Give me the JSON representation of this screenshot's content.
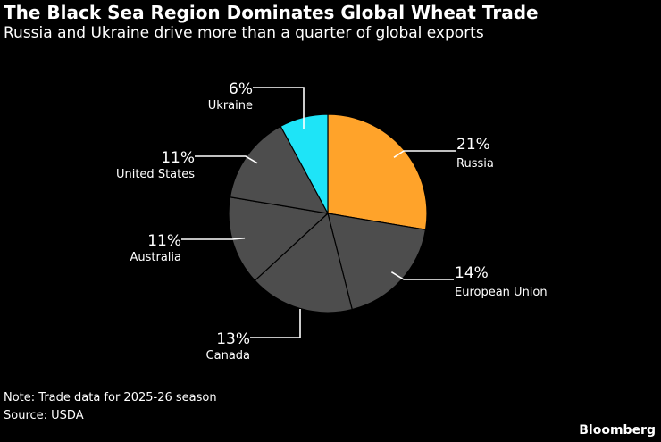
{
  "title": "The Black Sea Region Dominates Global Wheat Trade",
  "subtitle": "Russia and Ukraine drive more than a quarter of global exports",
  "note": "Note: Trade data for 2025-26 season",
  "source": "Source: USDA",
  "brand": "Bloomberg",
  "chart_data": {
    "type": "pie",
    "slices": [
      {
        "label": "Russia",
        "pct_label": "21%",
        "value": 21,
        "color": "#FFA32A"
      },
      {
        "label": "European Union",
        "pct_label": "14%",
        "value": 14,
        "color": "#4D4D4D"
      },
      {
        "label": "Canada",
        "pct_label": "13%",
        "value": 13,
        "color": "#4D4D4D"
      },
      {
        "label": "Australia",
        "pct_label": "11%",
        "value": 11,
        "color": "#4D4D4D"
      },
      {
        "label": "United States",
        "pct_label": "11%",
        "value": 11,
        "color": "#4D4D4D"
      },
      {
        "label": "Ukraine",
        "pct_label": "6%",
        "value": 6,
        "color": "#1EE4F7"
      }
    ]
  }
}
